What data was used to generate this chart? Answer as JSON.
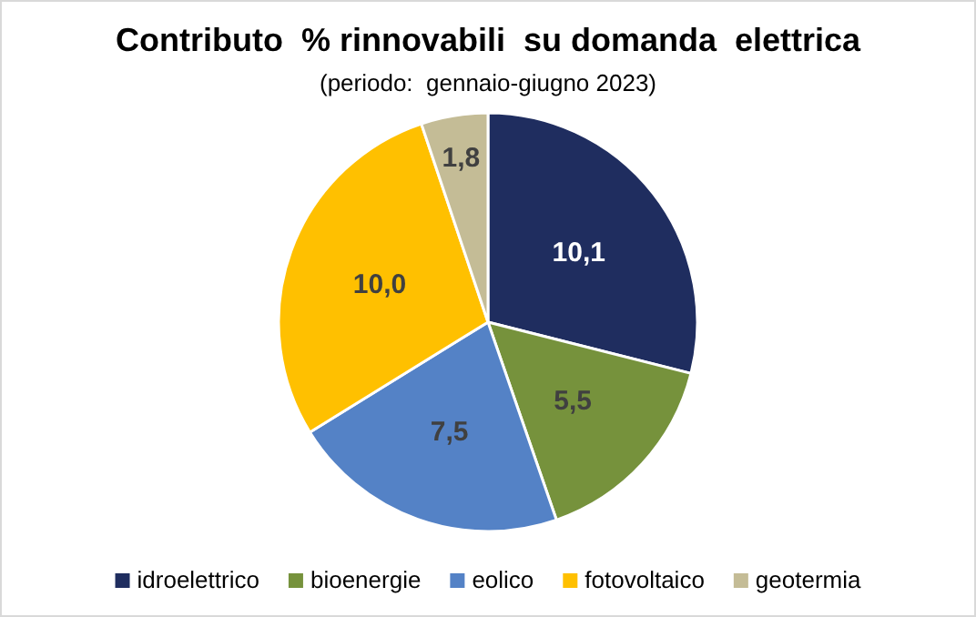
{
  "chart_data": {
    "type": "pie",
    "title": "Contributo  % rinnovabili  su domanda  elettrica",
    "subtitle": "(periodo:  gennaio-giugno 2023)",
    "categories": [
      "idroelettrico",
      "bioenergie",
      "eolico",
      "fotovoltaico",
      "geotermia"
    ],
    "values": [
      10.1,
      5.5,
      7.5,
      10.0,
      1.8
    ],
    "value_labels": [
      "10,1",
      "5,5",
      "7,5",
      "10,0",
      "1,8"
    ],
    "colors": [
      "#1f2d5f",
      "#76923c",
      "#5482c6",
      "#ffc000",
      "#c4bc96"
    ],
    "legend": "bottom"
  }
}
